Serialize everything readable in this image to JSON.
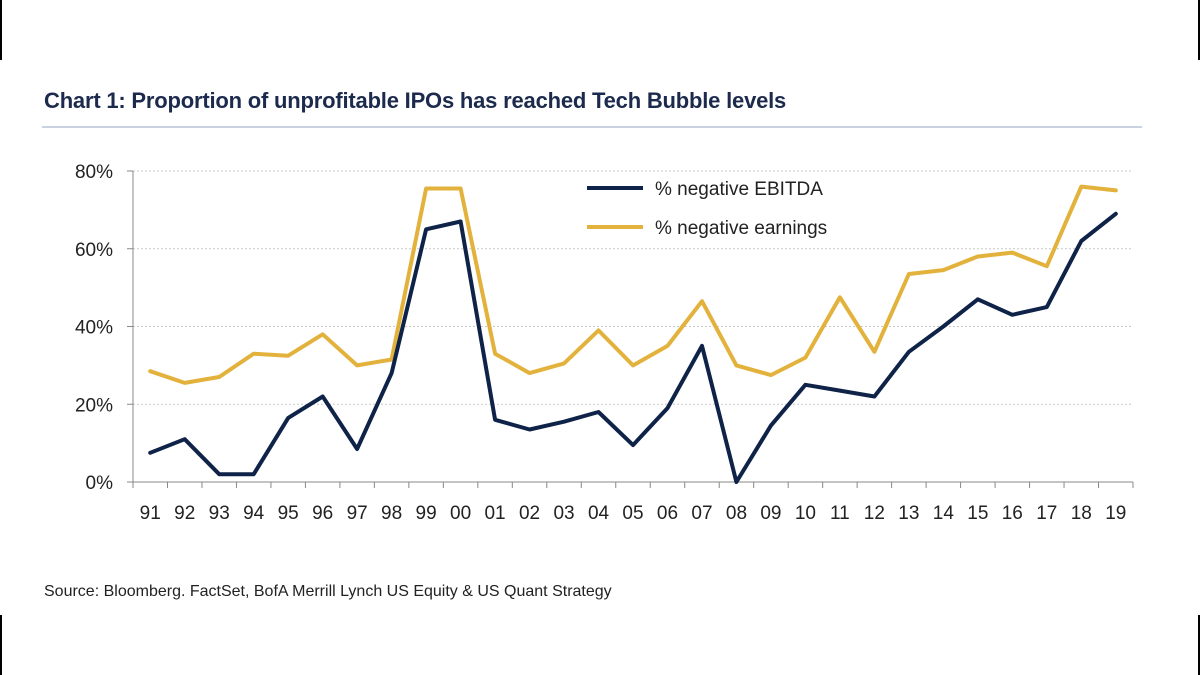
{
  "chart_data": {
    "type": "line",
    "title": "Chart 1: Proportion of unprofitable IPOs has reached Tech Bubble levels",
    "categories": [
      "91",
      "92",
      "93",
      "94",
      "95",
      "96",
      "97",
      "98",
      "99",
      "00",
      "01",
      "02",
      "03",
      "04",
      "05",
      "06",
      "07",
      "08",
      "09",
      "10",
      "11",
      "12",
      "13",
      "14",
      "15",
      "16",
      "17",
      "18",
      "19"
    ],
    "series": [
      {
        "name": "% negative EBITDA",
        "color": "#0f2348",
        "values": [
          7.5,
          11,
          2,
          2,
          16.5,
          22,
          8.5,
          28,
          65,
          67,
          16,
          13.5,
          15.5,
          18,
          9.5,
          19,
          35,
          0,
          14.5,
          25,
          23.5,
          22,
          33.5,
          40,
          47,
          43,
          45,
          62,
          69
        ]
      },
      {
        "name": "% negative earnings",
        "color": "#e3b23c",
        "values": [
          28.5,
          25.5,
          27,
          33,
          32.5,
          38,
          30,
          31.5,
          75.5,
          75.5,
          33,
          28,
          30.5,
          39,
          30,
          35,
          46.5,
          30,
          27.5,
          32,
          47.5,
          33.5,
          53.5,
          54.5,
          58,
          59,
          55.5,
          76,
          75
        ]
      }
    ],
    "yticks": [
      "0%",
      "20%",
      "40%",
      "60%",
      "80%"
    ],
    "ytick_values": [
      0,
      20,
      40,
      60,
      80
    ],
    "ylim": [
      0,
      80
    ],
    "grid": true,
    "legend_position": "top-right"
  },
  "source": "Source: Bloomberg. FactSet, BofA Merrill Lynch US Equity & US Quant Strategy"
}
